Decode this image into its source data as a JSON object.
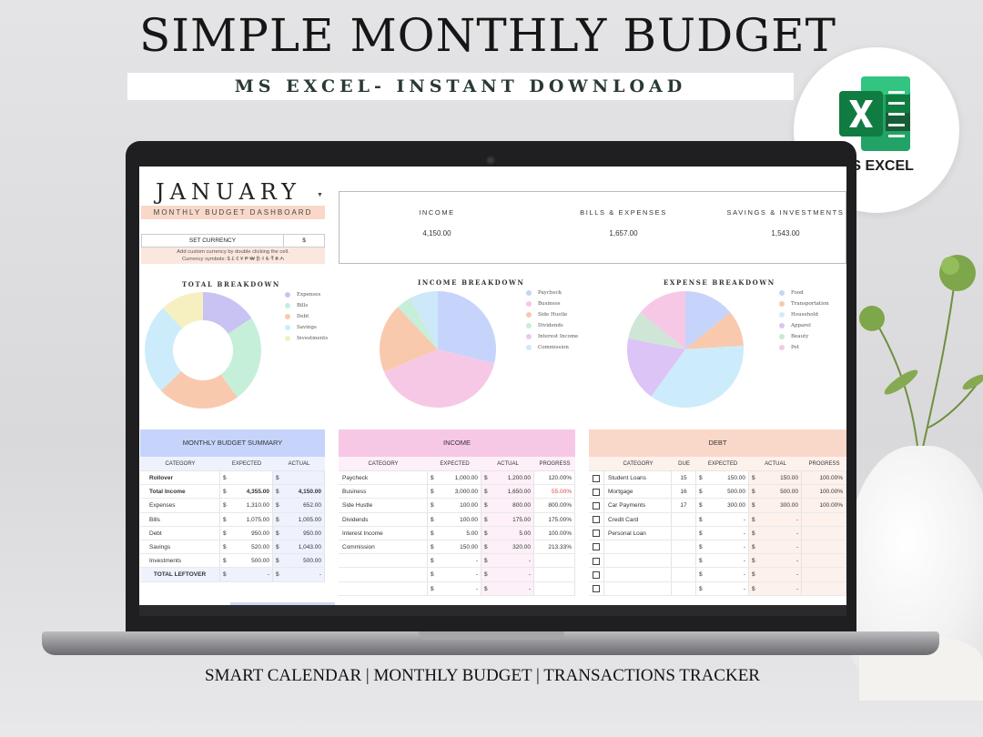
{
  "promo": {
    "title": "SIMPLE MONTHLY BUDGET",
    "subtitle": "MS EXCEL- INSTANT DOWNLOAD",
    "badge_label": "MS EXCEL",
    "badge_icon": "excel-logo-icon",
    "footer": "SMART CALENDAR  | MONTHLY BUDGET |  TRANSACTIONS TRACKER"
  },
  "dashboard": {
    "month": "JANUARY",
    "subtitle": "MONTHLY BUDGET DASHBOARD",
    "set_currency_label": "SET CURRENCY",
    "currency_value": "$",
    "currency_help_line1": "Add custom currency by double clicking the cell.",
    "currency_help_line2": "Currency symbols: $ £ € ¥ ₱ ₩ ₿ ₫ ₺ ₹ ₴ ₼",
    "kpis": [
      {
        "label": "INCOME",
        "value": "4,150.00"
      },
      {
        "label": "BILLS & EXPENSES",
        "value": "1,657.00"
      },
      {
        "label": "SAVINGS & INVESTMENTS",
        "value": "1,543.00"
      }
    ]
  },
  "chart_data": [
    {
      "type": "pie",
      "variant": "donut",
      "title": "TOTAL BREAKDOWN",
      "labels": [
        "Expenses",
        "Bills",
        "Debt",
        "Savings",
        "Investments"
      ],
      "values": [
        652,
        1005,
        950,
        1043,
        500
      ],
      "colors": [
        "#c9c3f4",
        "#c6efd9",
        "#f9c9ad",
        "#ccecfb",
        "#f6efbf"
      ]
    },
    {
      "type": "pie",
      "title": "INCOME BREAKDOWN",
      "labels": [
        "Paycheck",
        "Business",
        "Side Hustle",
        "Dividends",
        "Interest Income",
        "Commission"
      ],
      "values": [
        1200,
        1650,
        800,
        175,
        5,
        320
      ],
      "colors": [
        "#c6d4fb",
        "#f6c8e6",
        "#f9c9ad",
        "#c6efd9",
        "#e8c9f6",
        "#cde9f9"
      ]
    },
    {
      "type": "pie",
      "title": "EXPENSE BREAKDOWN",
      "labels": [
        "Food",
        "Transportation",
        "Household",
        "Apparel",
        "Beauty",
        "Pet"
      ],
      "values": [
        14,
        10,
        36,
        18,
        8,
        14
      ],
      "colors": [
        "#c6d4fb",
        "#f9c9ad",
        "#ccecfb",
        "#dcc4f6",
        "#cfe6d6",
        "#f6c8e6"
      ]
    }
  ],
  "summary_table": {
    "title": "MONTHLY BUDGET SUMMARY",
    "columns": [
      "CATEGORY",
      "EXPECTED",
      "ACTUAL"
    ],
    "rows": [
      {
        "category": "Rollover",
        "cur1": "$",
        "expected": "",
        "cur2": "$",
        "actual": ""
      },
      {
        "category": "Total Income",
        "cur1": "$",
        "expected": "4,355.00",
        "cur2": "$",
        "actual": "4,150.00"
      },
      {
        "category": "Expenses",
        "cur1": "$",
        "expected": "1,310.00",
        "cur2": "$",
        "actual": "652.00"
      },
      {
        "category": "Bills",
        "cur1": "$",
        "expected": "1,075.00",
        "cur2": "$",
        "actual": "1,005.00"
      },
      {
        "category": "Debt",
        "cur1": "$",
        "expected": "950.00",
        "cur2": "$",
        "actual": "950.00"
      },
      {
        "category": "Savings",
        "cur1": "$",
        "expected": "520.00",
        "cur2": "$",
        "actual": "1,043.00"
      },
      {
        "category": "Investments",
        "cur1": "$",
        "expected": "500.00",
        "cur2": "$",
        "actual": "500.00"
      },
      {
        "category": "TOTAL LEFTOVER",
        "cur1": "$",
        "expected": "-",
        "cur2": "$",
        "actual": "-"
      }
    ]
  },
  "income_table": {
    "title": "INCOME",
    "columns": [
      "CATEGORY",
      "EXPECTED",
      "ACTUAL",
      "PROGRESS"
    ],
    "rows": [
      {
        "category": "Paycheck",
        "cur1": "$",
        "expected": "1,000.00",
        "cur2": "$",
        "actual": "1,200.00",
        "progress": "120.00%"
      },
      {
        "category": "Business",
        "cur1": "$",
        "expected": "3,000.00",
        "cur2": "$",
        "actual": "1,650.00",
        "progress": "55.00%"
      },
      {
        "category": "Side Hustle",
        "cur1": "$",
        "expected": "100.00",
        "cur2": "$",
        "actual": "800.00",
        "progress": "800.00%"
      },
      {
        "category": "Dividends",
        "cur1": "$",
        "expected": "100.00",
        "cur2": "$",
        "actual": "175.00",
        "progress": "175.00%"
      },
      {
        "category": "Interest Income",
        "cur1": "$",
        "expected": "5.00",
        "cur2": "$",
        "actual": "5.00",
        "progress": "100.00%"
      },
      {
        "category": "Commission",
        "cur1": "$",
        "expected": "150.00",
        "cur2": "$",
        "actual": "320.00",
        "progress": "213.33%"
      },
      {
        "category": "",
        "cur1": "$",
        "expected": "-",
        "cur2": "$",
        "actual": "-",
        "progress": ""
      },
      {
        "category": "",
        "cur1": "$",
        "expected": "-",
        "cur2": "$",
        "actual": "-",
        "progress": ""
      },
      {
        "category": "",
        "cur1": "$",
        "expected": "-",
        "cur2": "$",
        "actual": "-",
        "progress": ""
      }
    ],
    "low_progress_color": "#e0474c"
  },
  "debt_table": {
    "title": "DEBT",
    "columns": [
      "CATEGORY",
      "DUE",
      "EXPECTED",
      "ACTUAL",
      "PROGRESS"
    ],
    "rows": [
      {
        "category": "Student Loans",
        "due": "15",
        "cur1": "$",
        "expected": "150.00",
        "cur2": "$",
        "actual": "150.00",
        "progress": "100.00%"
      },
      {
        "category": "Mortgage",
        "due": "16",
        "cur1": "$",
        "expected": "500.00",
        "cur2": "$",
        "actual": "500.00",
        "progress": "100.00%"
      },
      {
        "category": "Car Payments",
        "due": "17",
        "cur1": "$",
        "expected": "300.00",
        "cur2": "$",
        "actual": "300.00",
        "progress": "100.00%"
      },
      {
        "category": "Credit Card",
        "due": "",
        "cur1": "$",
        "expected": "-",
        "cur2": "$",
        "actual": "-",
        "progress": ""
      },
      {
        "category": "Personal Loan",
        "due": "",
        "cur1": "$",
        "expected": "-",
        "cur2": "$",
        "actual": "-",
        "progress": ""
      },
      {
        "category": "",
        "due": "",
        "cur1": "$",
        "expected": "-",
        "cur2": "$",
        "actual": "-",
        "progress": ""
      },
      {
        "category": "",
        "due": "",
        "cur1": "$",
        "expected": "-",
        "cur2": "$",
        "actual": "-",
        "progress": ""
      },
      {
        "category": "",
        "due": "",
        "cur1": "$",
        "expected": "-",
        "cur2": "$",
        "actual": "-",
        "progress": ""
      },
      {
        "category": "",
        "due": "",
        "cur1": "$",
        "expected": "-",
        "cur2": "$",
        "actual": "-",
        "progress": ""
      }
    ]
  },
  "colors": {
    "summary_header": "#c6d4fb",
    "summary_body": "#eef2fd",
    "income_header": "#f6c8e6",
    "income_body": "#fdf0f8",
    "debt_header": "#f9d8c9",
    "debt_body": "#fdf1ec",
    "excel_green": "#1f7a44"
  }
}
